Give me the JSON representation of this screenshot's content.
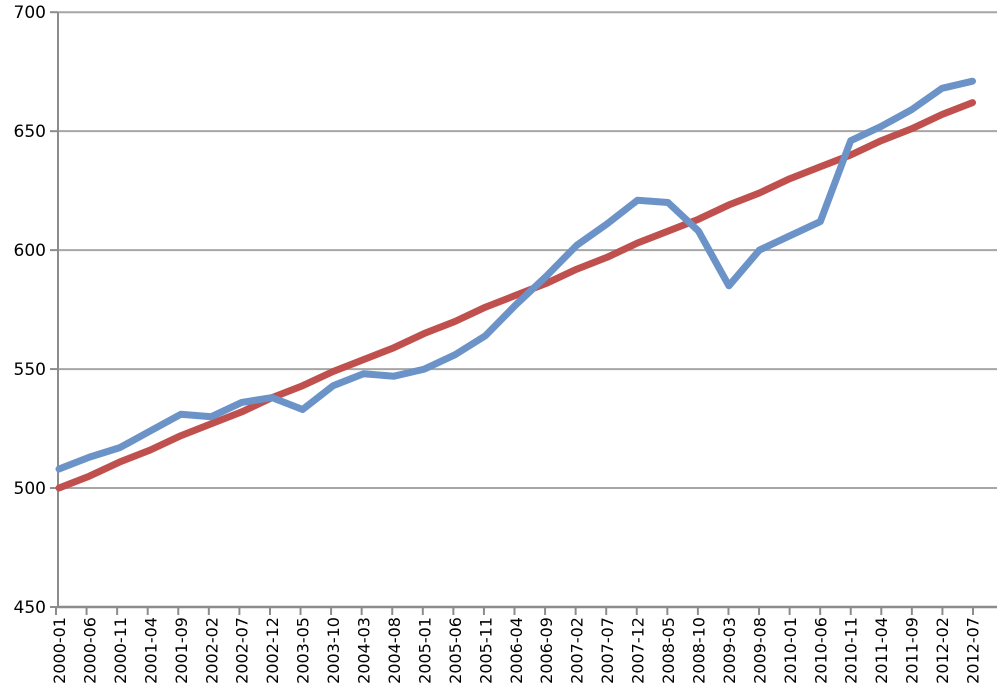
{
  "chart_data": {
    "type": "line",
    "title": "",
    "categories": [
      "2000-01",
      "2000-06",
      "2000-11",
      "2001-04",
      "2001-09",
      "2002-02",
      "2002-07",
      "2002-12",
      "2003-05",
      "2003-10",
      "2004-03",
      "2004-08",
      "2005-01",
      "2005-06",
      "2005-11",
      "2006-04",
      "2006-09",
      "2007-02",
      "2007-07",
      "2007-12",
      "2008-05",
      "2008-10",
      "2009-03",
      "2009-08",
      "2010-01",
      "2010-06",
      "2010-11",
      "2011-04",
      "2011-09",
      "2012-02",
      "2012-07"
    ],
    "series": [
      {
        "name": "blue-line",
        "color": "#6B93C8",
        "values": [
          508,
          513,
          517,
          524,
          531,
          530,
          536,
          538,
          533,
          543,
          548,
          547,
          550,
          556,
          564,
          577,
          589,
          602,
          611,
          621,
          620,
          608,
          585,
          600,
          606,
          612,
          646,
          652,
          659,
          668,
          671
        ]
      },
      {
        "name": "red-trend-line",
        "color": "#C0504D",
        "values": [
          500,
          505,
          511,
          516,
          522,
          527,
          532,
          538,
          543,
          549,
          554,
          559,
          565,
          570,
          576,
          581,
          586,
          592,
          597,
          603,
          608,
          613,
          619,
          624,
          630,
          635,
          640,
          646,
          651,
          657,
          662
        ]
      }
    ],
    "ylim": [
      450,
      700
    ],
    "yticks": [
      450,
      500,
      550,
      600,
      650,
      700
    ],
    "grid": true,
    "legend_position": "none",
    "x_label_rotation": -90,
    "colors": {
      "gridline": "#A6A6A6",
      "axis": "#8C8C8C",
      "tick": "#8C8C8C",
      "background": "#FFFFFF",
      "text": "#000000"
    }
  }
}
